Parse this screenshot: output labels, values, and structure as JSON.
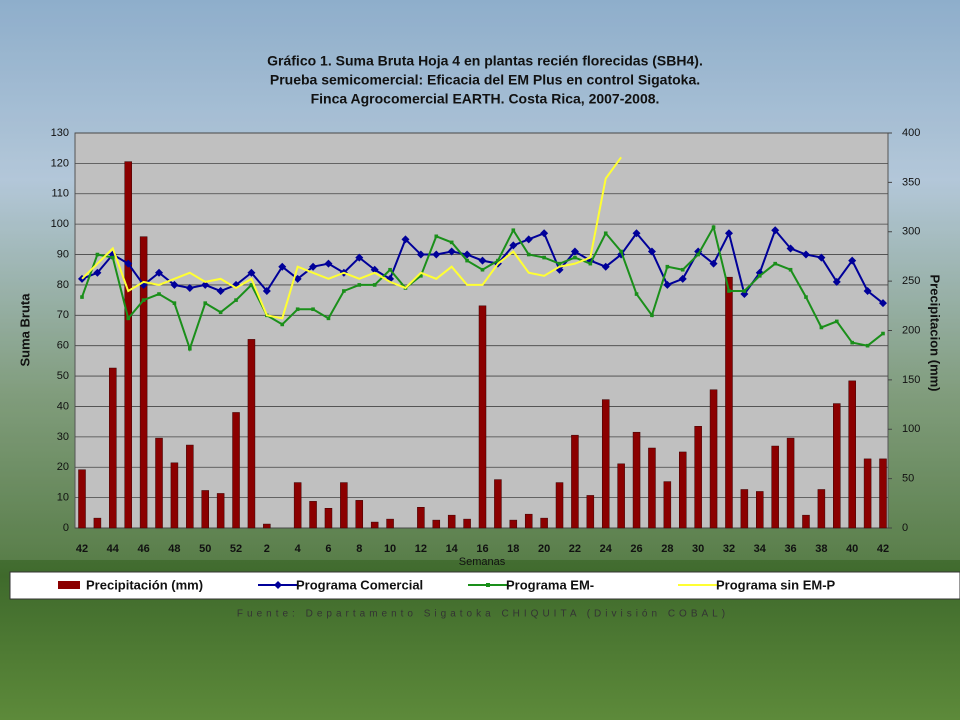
{
  "chart_data": {
    "type": "bar-line",
    "title": [
      "Gráfico 1. Suma Bruta Hoja 4 en plantas recién  florecidas (SBH4).",
      "Prueba semicomercial: Eficacia del EM Plus en control Sigatoka.",
      "Finca Agrocomercial EARTH. Costa Rica, 2007-2008."
    ],
    "ylabel": "Suma Bruta",
    "y2label": "Precipitacion (mm)",
    "xlabel": "Semanas",
    "source": "Fuente: Departamento Sigatoka CHIQUITA (División COBAL)",
    "categories": [
      "42",
      null,
      "44",
      null,
      "46",
      null,
      "48",
      null,
      "50",
      null,
      "52",
      null,
      "2",
      null,
      "4",
      null,
      "6",
      null,
      "8",
      null,
      "10",
      null,
      "12",
      null,
      "14",
      null,
      "16",
      null,
      "18",
      null,
      "20",
      null,
      "22",
      null,
      "24",
      null,
      "26",
      null,
      "28",
      null,
      "30",
      null,
      "32",
      null,
      "34",
      null,
      "36",
      null,
      "38",
      null,
      "40",
      null,
      "42"
    ],
    "ylim": [
      0,
      130
    ],
    "yticks": [
      0,
      10,
      20,
      30,
      40,
      50,
      60,
      70,
      80,
      90,
      100,
      110,
      120,
      130
    ],
    "y2lim": [
      0,
      400
    ],
    "y2ticks": [
      0,
      50,
      100,
      150,
      200,
      250,
      300,
      350,
      400
    ],
    "grid": true,
    "series": [
      {
        "name": "Precipitación (mm)",
        "kind": "bar",
        "axis": "y2",
        "color": "#8b0000",
        "values": [
          59,
          10,
          162,
          371,
          295,
          91,
          66,
          84,
          38,
          35,
          117,
          191,
          4,
          0,
          46,
          27,
          20,
          46,
          28,
          6,
          9,
          0,
          21,
          8,
          13,
          9,
          225,
          49,
          8,
          14,
          10,
          46,
          94,
          33,
          130,
          65,
          97,
          81,
          47,
          77,
          103,
          140,
          254,
          39,
          37,
          83,
          91,
          13,
          39,
          126,
          149,
          70,
          70
        ]
      },
      {
        "name": "Programa Comercial",
        "kind": "line",
        "marker": "diamond",
        "color": "#000099",
        "values": [
          82,
          84,
          90,
          87,
          80,
          84,
          80,
          79,
          80,
          78,
          80,
          84,
          78,
          86,
          82,
          86,
          87,
          84,
          89,
          85,
          82,
          95,
          90,
          90,
          91,
          90,
          88,
          87,
          93,
          95,
          97,
          85,
          91,
          88,
          86,
          90,
          97,
          91,
          80,
          82,
          91,
          87,
          97,
          77,
          84,
          98,
          92,
          90,
          89,
          81,
          88,
          78,
          74
        ]
      },
      {
        "name": "Programa EM-",
        "kind": "line",
        "marker": "square",
        "color": "#1a8f1a",
        "values": [
          76,
          90,
          89,
          69,
          75,
          77,
          74,
          59,
          74,
          71,
          75,
          80,
          70,
          67,
          72,
          72,
          69,
          78,
          80,
          80,
          85,
          79,
          83,
          96,
          94,
          88,
          85,
          88,
          98,
          90,
          89,
          87,
          89,
          87,
          97,
          91,
          77,
          70,
          86,
          85,
          90,
          99,
          78,
          78,
          83,
          87,
          85,
          76,
          66,
          68,
          61,
          60,
          64
        ]
      },
      {
        "name": "Programa sin EM-P",
        "kind": "line",
        "marker": "none",
        "color": "#ffff33",
        "values": [
          82,
          87,
          92,
          78,
          81,
          80,
          82,
          84,
          81,
          82,
          79,
          82,
          70,
          69,
          86,
          84,
          82,
          84,
          82,
          84,
          81,
          79,
          84,
          82,
          86,
          80,
          80,
          87,
          91,
          84,
          83,
          86,
          87,
          89,
          115,
          122,
          null,
          null,
          null,
          null,
          null,
          null,
          null,
          null,
          null,
          null,
          null,
          null,
          null,
          null,
          null,
          null,
          null
        ]
      }
    ]
  }
}
